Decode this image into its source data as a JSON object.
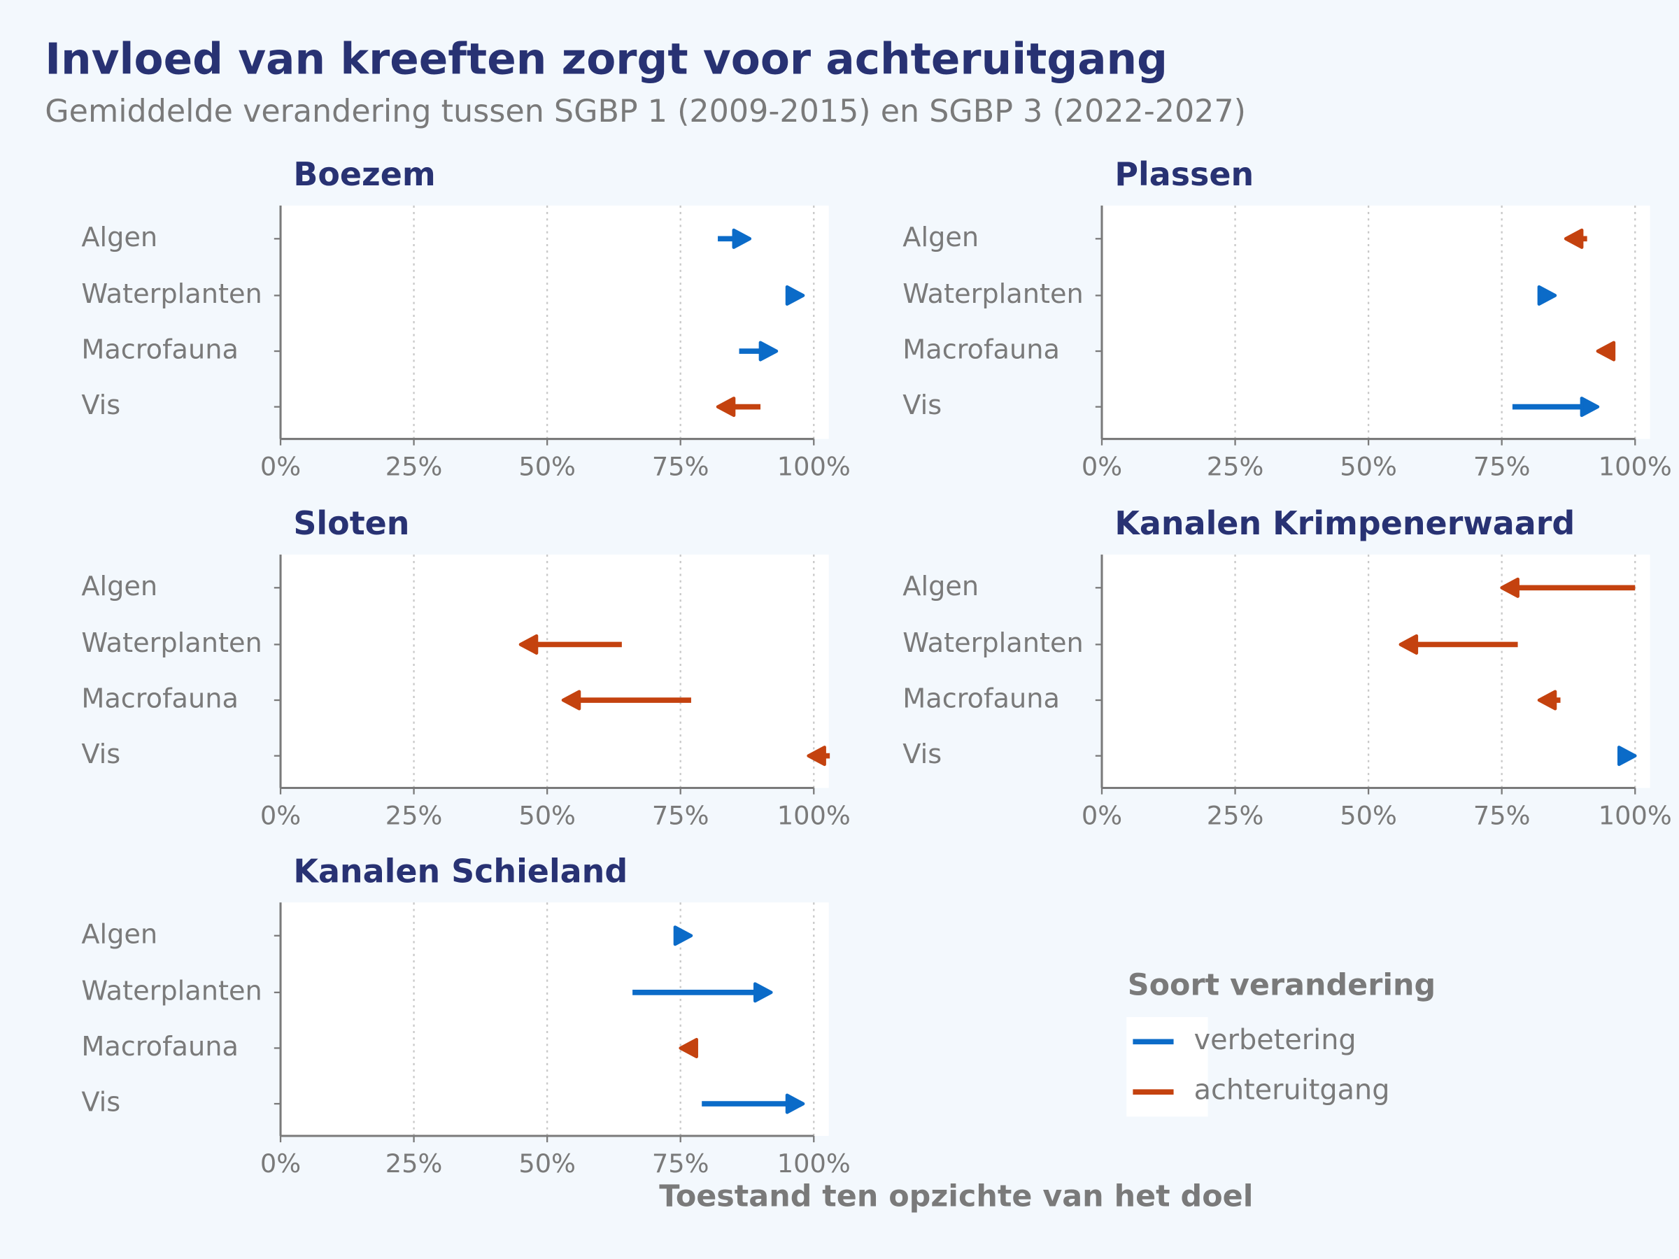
{
  "chart_data": {
    "type": "arrow",
    "title": "Invloed van kreeften zorgt voor achteruitgang",
    "subtitle": "Gemiddelde verandering tussen SGBP 1 (2009-2015) en SGBP 3 (2022-2027)",
    "x_label": "Toestand ten opzichte van het doel",
    "legend_title": "Soort verandering",
    "series": [
      {
        "name": "verbetering",
        "color": "#0b6bc8"
      },
      {
        "name": "achteruitgang",
        "color": "#c4420f"
      }
    ],
    "xlim": [
      0,
      100
    ],
    "xticks": [
      {
        "value": 0,
        "label": "0%"
      },
      {
        "value": 25,
        "label": "25%"
      },
      {
        "value": 50,
        "label": "50%"
      },
      {
        "value": 75,
        "label": "75%"
      },
      {
        "value": 100,
        "label": "100%"
      }
    ],
    "grid": true,
    "categories": [
      "Algen",
      "Waterplanten",
      "Macrofauna",
      "Vis"
    ],
    "panels": [
      {
        "title": "Boezem",
        "start": [
          82,
          95,
          86,
          90
        ],
        "end": [
          88,
          98,
          93,
          82
        ]
      },
      {
        "title": "Plassen",
        "start": [
          91,
          82,
          96,
          77
        ],
        "end": [
          87,
          85,
          93,
          93
        ]
      },
      {
        "title": "Sloten",
        "start": [
          null,
          64,
          77,
          103
        ],
        "end": [
          null,
          45,
          53,
          99
        ]
      },
      {
        "title": "Kanalen Krimpenerwaard",
        "start": [
          100,
          78,
          86,
          97
        ],
        "end": [
          75,
          56,
          82,
          100
        ]
      },
      {
        "title": "Kanalen Schieland",
        "start": [
          74,
          66,
          78,
          79
        ],
        "end": [
          77,
          92,
          75,
          98
        ]
      }
    ]
  }
}
